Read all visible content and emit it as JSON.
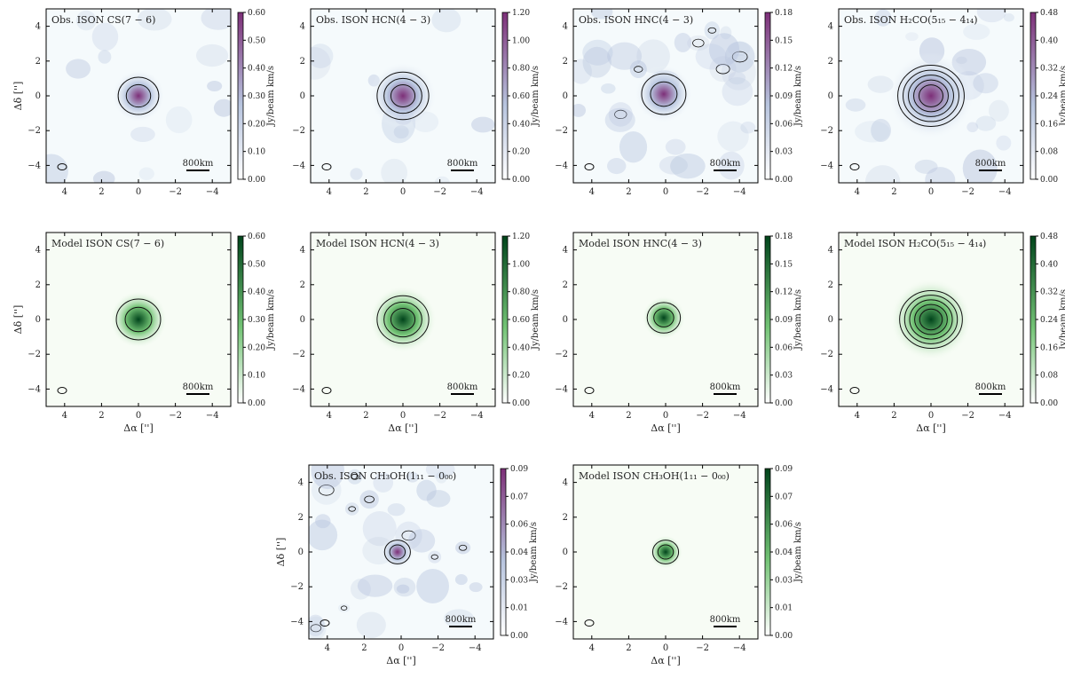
{
  "figure_caption": "",
  "colors": {
    "obs_low": "#f5fafc",
    "obs_mid": "#b7c4de",
    "obs_high": "#7d2f78",
    "model_low": "#f7fcf5",
    "model_mid": "#74c476",
    "model_high": "#00441b",
    "contour": "#111111"
  },
  "chart_data": [
    {
      "type": "heatmap",
      "kind": "obs",
      "title": "Obs. ISON CS(7 − 6)",
      "xlabel": "",
      "ylabel": "Δδ ['']",
      "colorbar_label": "Jy/beam km/s",
      "colorbar_ticks": [
        "0.00",
        "0.10",
        "0.20",
        "0.30",
        "0.40",
        "0.50",
        "0.60"
      ],
      "clim": [
        0,
        0.6
      ],
      "xlim": [
        5,
        -5
      ],
      "ylim": [
        -5,
        5
      ],
      "xticks": [
        "4",
        "2",
        "0",
        "−2",
        "−4"
      ],
      "yticks": [
        "4",
        "2",
        "0",
        "−2",
        "−4"
      ],
      "scalebar_label": "800km",
      "peak_offset": [
        0,
        0
      ],
      "contour_count": 2,
      "noise_level": 0.35,
      "emission_width": 0.55
    },
    {
      "type": "heatmap",
      "kind": "obs",
      "title": "Obs. ISON HCN(4 − 3)",
      "xlabel": "",
      "ylabel": "",
      "colorbar_label": "Jy/beam km/s",
      "colorbar_ticks": [
        "0.00",
        "0.20",
        "0.40",
        "0.60",
        "0.80",
        "1.00",
        "1.20"
      ],
      "clim": [
        0,
        1.2
      ],
      "xlim": [
        5,
        -5
      ],
      "ylim": [
        -5,
        5
      ],
      "xticks": [
        "4",
        "2",
        "0",
        "−2",
        "−4"
      ],
      "yticks": [
        "4",
        "2",
        "0",
        "−2",
        "−4"
      ],
      "scalebar_label": "800km",
      "peak_offset": [
        0,
        0
      ],
      "contour_count": 3,
      "noise_level": 0.3,
      "emission_width": 0.7
    },
    {
      "type": "heatmap",
      "kind": "obs",
      "title": "Obs. ISON HNC(4 − 3)",
      "xlabel": "",
      "ylabel": "",
      "colorbar_label": "Jy/beam km/s",
      "colorbar_ticks": [
        "0.00",
        "0.03",
        "0.06",
        "0.09",
        "0.12",
        "0.15",
        "0.18"
      ],
      "clim": [
        0,
        0.18
      ],
      "xlim": [
        5,
        -5
      ],
      "ylim": [
        -5,
        5
      ],
      "xticks": [
        "4",
        "2",
        "0",
        "−2",
        "−4"
      ],
      "yticks": [
        "4",
        "2",
        "0",
        "−2",
        "−4"
      ],
      "scalebar_label": "800km",
      "peak_offset": [
        0.1,
        0.1
      ],
      "contour_count": 2,
      "noise_level": 0.8,
      "emission_width": 0.6
    },
    {
      "type": "heatmap",
      "kind": "obs",
      "title": "Obs. ISON H₂CO(5₁₅ − 4₁₄)",
      "xlabel": "",
      "ylabel": "",
      "colorbar_label": "Jy/beam km/s",
      "colorbar_ticks": [
        "0.00",
        "0.08",
        "0.16",
        "0.24",
        "0.32",
        "0.40",
        "0.48"
      ],
      "clim": [
        0,
        0.48
      ],
      "xlim": [
        5,
        -5
      ],
      "ylim": [
        -5,
        5
      ],
      "xticks": [
        "4",
        "2",
        "0",
        "−2",
        "−4"
      ],
      "yticks": [
        "4",
        "2",
        "0",
        "−2",
        "−4"
      ],
      "scalebar_label": "800km",
      "peak_offset": [
        0,
        0
      ],
      "contour_count": 5,
      "noise_level": 0.55,
      "emission_width": 0.9
    },
    {
      "type": "heatmap",
      "kind": "model",
      "title": "Model ISON CS(7 − 6)",
      "xlabel": "Δα ['']",
      "ylabel": "Δδ ['']",
      "colorbar_label": "Jy/beam km/s",
      "colorbar_ticks": [
        "0.00",
        "0.10",
        "0.20",
        "0.30",
        "0.40",
        "0.50",
        "0.60"
      ],
      "clim": [
        0,
        0.6
      ],
      "xlim": [
        5,
        -5
      ],
      "ylim": [
        -5,
        5
      ],
      "xticks": [
        "4",
        "2",
        "0",
        "−2",
        "−4"
      ],
      "yticks": [
        "4",
        "2",
        "0",
        "−2",
        "−4"
      ],
      "scalebar_label": "800km",
      "peak_offset": [
        0,
        0
      ],
      "contour_count": 2,
      "noise_level": 0,
      "emission_width": 0.6
    },
    {
      "type": "heatmap",
      "kind": "model",
      "title": "Model ISON HCN(4 − 3)",
      "xlabel": "Δα ['']",
      "ylabel": "",
      "colorbar_label": "Jy/beam km/s",
      "colorbar_ticks": [
        "0.00",
        "0.20",
        "0.40",
        "0.60",
        "0.80",
        "1.00",
        "1.20"
      ],
      "clim": [
        0,
        1.2
      ],
      "xlim": [
        5,
        -5
      ],
      "ylim": [
        -5,
        5
      ],
      "xticks": [
        "4",
        "2",
        "0",
        "−2",
        "−4"
      ],
      "yticks": [
        "4",
        "2",
        "0",
        "−2",
        "−4"
      ],
      "scalebar_label": "800km",
      "peak_offset": [
        0,
        0
      ],
      "contour_count": 3,
      "noise_level": 0,
      "emission_width": 0.7
    },
    {
      "type": "heatmap",
      "kind": "model",
      "title": "Model ISON HNC(4 − 3)",
      "xlabel": "Δα ['']",
      "ylabel": "",
      "colorbar_label": "Jy/beam km/s",
      "colorbar_ticks": [
        "0.00",
        "0.03",
        "0.06",
        "0.09",
        "0.12",
        "0.15",
        "0.18"
      ],
      "clim": [
        0,
        0.18
      ],
      "xlim": [
        5,
        -5
      ],
      "ylim": [
        -5,
        5
      ],
      "xticks": [
        "4",
        "2",
        "0",
        "−2",
        "−4"
      ],
      "yticks": [
        "4",
        "2",
        "0",
        "−2",
        "−4"
      ],
      "scalebar_label": "800km",
      "peak_offset": [
        0.1,
        0.1
      ],
      "contour_count": 2,
      "noise_level": 0,
      "emission_width": 0.45
    },
    {
      "type": "heatmap",
      "kind": "model",
      "title": "Model ISON H₂CO(5₁₅ − 4₁₄)",
      "xlabel": "Δα ['']",
      "ylabel": "",
      "colorbar_label": "Jy/beam km/s",
      "colorbar_ticks": [
        "0.00",
        "0.08",
        "0.16",
        "0.24",
        "0.32",
        "0.40",
        "0.48"
      ],
      "clim": [
        0,
        0.48
      ],
      "xlim": [
        5,
        -5
      ],
      "ylim": [
        -5,
        5
      ],
      "xticks": [
        "4",
        "2",
        "0",
        "−2",
        "−4"
      ],
      "yticks": [
        "4",
        "2",
        "0",
        "−2",
        "−4"
      ],
      "scalebar_label": "800km",
      "peak_offset": [
        0,
        0
      ],
      "contour_count": 5,
      "noise_level": 0,
      "emission_width": 0.85
    },
    {
      "type": "heatmap",
      "kind": "obs",
      "title": "Obs. ISON CH₃OH(1₁₁ − 0₀₀)",
      "xlabel": "Δα ['']",
      "ylabel": "Δδ ['']",
      "colorbar_label": "Jy/beam km/s",
      "colorbar_ticks": [
        "0.00",
        "0.01",
        "0.03",
        "0.04",
        "0.06",
        "0.07",
        "0.09"
      ],
      "clim": [
        0,
        0.09
      ],
      "xlim": [
        5,
        -5
      ],
      "ylim": [
        -5,
        5
      ],
      "xticks": [
        "4",
        "2",
        "0",
        "−2",
        "−4"
      ],
      "yticks": [
        "4",
        "2",
        "0",
        "−2",
        "−4"
      ],
      "scalebar_label": "800km",
      "peak_offset": [
        0.2,
        0
      ],
      "contour_count": 2,
      "noise_level": 0.8,
      "emission_width": 0.35
    },
    {
      "type": "heatmap",
      "kind": "model",
      "title": "Model ISON CH₃OH(1₁₁ − 0₀₀)",
      "xlabel": "Δα ['']",
      "ylabel": "",
      "colorbar_label": "Jy/beam km/s",
      "colorbar_ticks": [
        "0.00",
        "0.01",
        "0.03",
        "0.04",
        "0.06",
        "0.07",
        "0.09"
      ],
      "clim": [
        0,
        0.09
      ],
      "xlim": [
        5,
        -5
      ],
      "ylim": [
        -5,
        5
      ],
      "xticks": [
        "4",
        "2",
        "0",
        "−2",
        "−4"
      ],
      "yticks": [
        "4",
        "2",
        "0",
        "−2",
        "−4"
      ],
      "scalebar_label": "800km",
      "peak_offset": [
        0,
        0
      ],
      "contour_count": 2,
      "noise_level": 0,
      "emission_width": 0.35
    }
  ]
}
